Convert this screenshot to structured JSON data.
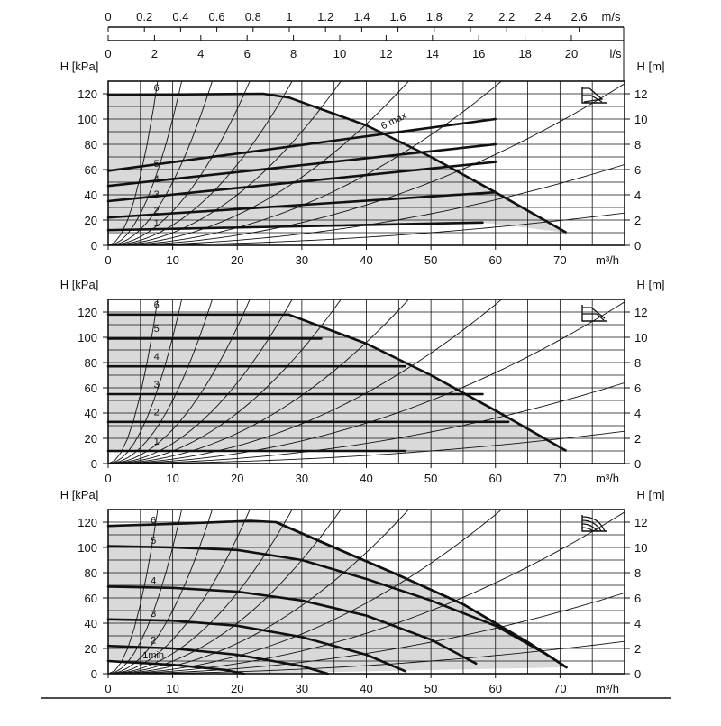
{
  "chart_data": [
    {
      "type": "line",
      "mode_icon": "proportional-pressure-icon",
      "top_axes": [
        {
          "ticks": [
            "0",
            "0.2",
            "0.4",
            "0.6",
            "0.8",
            "1",
            "1.2",
            "1.4",
            "1.6",
            "1.8",
            "2",
            "2.2",
            "2.4",
            "2.6"
          ],
          "unit": "m/s",
          "range": [
            0,
            2.6
          ]
        },
        {
          "ticks": [
            "0",
            "2",
            "4",
            "6",
            "8",
            "10",
            "12",
            "14",
            "16",
            "18",
            "20"
          ],
          "unit": "l/s",
          "range": [
            0,
            20
          ]
        }
      ],
      "xlabel": "m³/h",
      "ylabel_left": "H [kPa]",
      "ylabel_right": "H [m]",
      "xlim": [
        0,
        80
      ],
      "ylim_left": [
        0,
        130
      ],
      "ylim_right": [
        0,
        13
      ],
      "x_ticks": [
        "0",
        "10",
        "20",
        "30",
        "40",
        "50",
        "60",
        "70"
      ],
      "y_ticks_left": [
        "0",
        "20",
        "40",
        "60",
        "80",
        "100",
        "120"
      ],
      "y_ticks_right": [
        "0",
        "2",
        "4",
        "6",
        "8",
        "10",
        "12"
      ],
      "grid": true,
      "max_label": "6 max",
      "series": [
        {
          "name": "1",
          "x": [
            0,
            58
          ],
          "y": [
            12,
            18
          ]
        },
        {
          "name": "2",
          "x": [
            0,
            60
          ],
          "y": [
            22,
            42
          ]
        },
        {
          "name": "3",
          "x": [
            0,
            60
          ],
          "y": [
            35,
            66
          ]
        },
        {
          "name": "4",
          "x": [
            0,
            60
          ],
          "y": [
            47,
            80
          ]
        },
        {
          "name": "5",
          "x": [
            0,
            60
          ],
          "y": [
            59,
            100
          ]
        },
        {
          "name": "6",
          "x": [
            0,
            24,
            28
          ],
          "y": [
            119,
            120,
            117
          ]
        }
      ],
      "max_curve": {
        "x": [
          28,
          40,
          50,
          60,
          71
        ],
        "y": [
          117,
          95,
          70,
          42,
          10
        ]
      }
    },
    {
      "type": "line",
      "mode_icon": "constant-pressure-icon",
      "xlabel": "m³/h",
      "ylabel_left": "H [kPa]",
      "ylabel_right": "H [m]",
      "xlim": [
        0,
        80
      ],
      "ylim_left": [
        0,
        130
      ],
      "ylim_right": [
        0,
        13
      ],
      "x_ticks": [
        "0",
        "10",
        "20",
        "30",
        "40",
        "50",
        "60",
        "70"
      ],
      "y_ticks_left": [
        "0",
        "20",
        "40",
        "60",
        "80",
        "100",
        "120"
      ],
      "y_ticks_right": [
        "0",
        "2",
        "4",
        "6",
        "8",
        "10",
        "12"
      ],
      "grid": true,
      "series": [
        {
          "name": "1",
          "x": [
            0,
            46
          ],
          "y": [
            10,
            10
          ]
        },
        {
          "name": "2",
          "x": [
            0,
            62
          ],
          "y": [
            33,
            33
          ]
        },
        {
          "name": "3",
          "x": [
            0,
            58
          ],
          "y": [
            55,
            55
          ]
        },
        {
          "name": "4",
          "x": [
            0,
            46
          ],
          "y": [
            77,
            77
          ]
        },
        {
          "name": "5",
          "x": [
            0,
            33
          ],
          "y": [
            99,
            99
          ]
        },
        {
          "name": "6",
          "x": [
            0,
            28
          ],
          "y": [
            118,
            118
          ]
        }
      ],
      "max_curve": {
        "x": [
          28,
          40,
          50,
          60,
          71
        ],
        "y": [
          118,
          95,
          70,
          42,
          10
        ]
      }
    },
    {
      "type": "line",
      "mode_icon": "constant-curve-icon",
      "xlabel": "m³/h",
      "ylabel_left": "H [kPa]",
      "ylabel_right": "H [m]",
      "xlim": [
        0,
        80
      ],
      "ylim_left": [
        0,
        130
      ],
      "ylim_right": [
        0,
        13
      ],
      "x_ticks": [
        "0",
        "10",
        "20",
        "30",
        "40",
        "50",
        "60",
        "70"
      ],
      "y_ticks_left": [
        "0",
        "20",
        "40",
        "60",
        "80",
        "100",
        "120"
      ],
      "y_ticks_right": [
        "0",
        "2",
        "4",
        "6",
        "8",
        "10",
        "12"
      ],
      "grid": true,
      "series": [
        {
          "name": "1min",
          "x": [
            0,
            10,
            18,
            21
          ],
          "y": [
            10,
            7,
            3,
            0
          ]
        },
        {
          "name": "2",
          "x": [
            0,
            10,
            20,
            30,
            34
          ],
          "y": [
            22,
            20,
            15,
            6,
            0
          ]
        },
        {
          "name": "3",
          "x": [
            0,
            10,
            20,
            30,
            40,
            46
          ],
          "y": [
            43,
            42,
            38,
            29,
            15,
            2
          ]
        },
        {
          "name": "4",
          "x": [
            0,
            10,
            20,
            30,
            40,
            50,
            57
          ],
          "y": [
            69,
            68,
            65,
            58,
            46,
            27,
            8
          ]
        },
        {
          "name": "5",
          "x": [
            0,
            10,
            20,
            30,
            40,
            50,
            60,
            68
          ],
          "y": [
            101,
            100,
            98,
            90,
            75,
            58,
            38,
            15
          ]
        },
        {
          "name": "6",
          "x": [
            0,
            12,
            22,
            26,
            35,
            45,
            55,
            65,
            71
          ],
          "y": [
            117,
            119,
            121,
            120,
            100,
            78,
            55,
            25,
            5
          ]
        }
      ],
      "max_curve": {
        "x": [
          26,
          35,
          45,
          55,
          65,
          71
        ],
        "y": [
          120,
          100,
          78,
          55,
          25,
          5
        ]
      }
    }
  ]
}
